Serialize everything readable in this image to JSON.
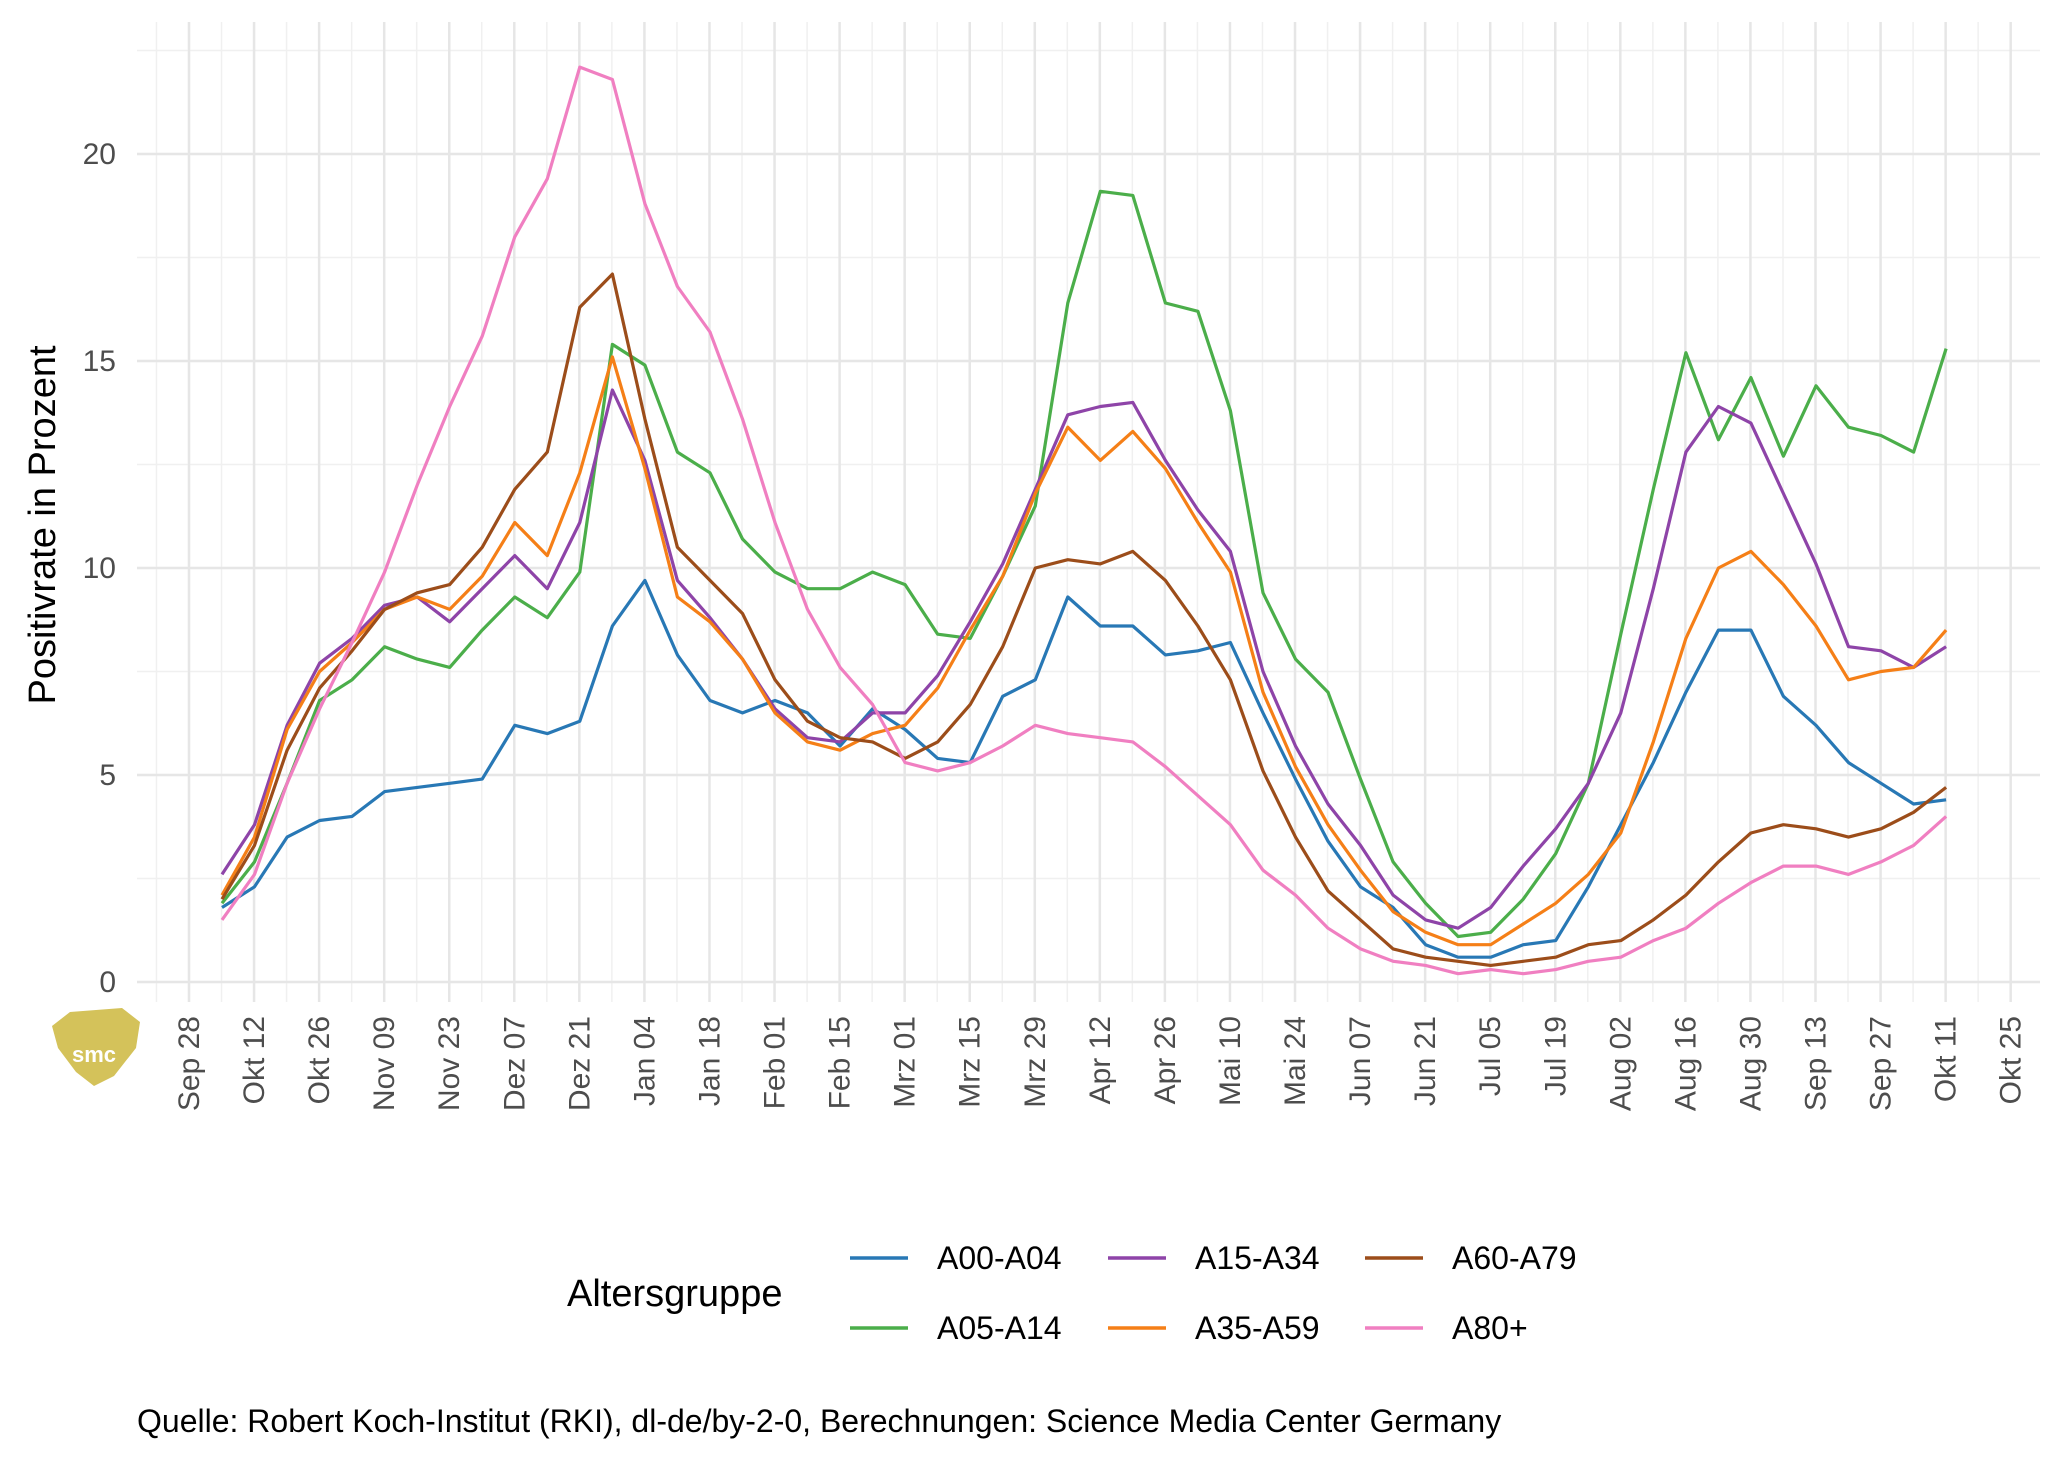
{
  "chart_data": {
    "type": "line",
    "title": "",
    "xlabel": "",
    "ylabel": "Positivrate in Prozent",
    "ylim": [
      -0.7,
      23.5
    ],
    "y_ticks": [
      0,
      5,
      10,
      15,
      20
    ],
    "x_tick_labels": [
      "Sep 28",
      "Okt 12",
      "Okt 26",
      "Nov 09",
      "Nov 23",
      "Dez 07",
      "Dez 21",
      "Jan 04",
      "Jan 18",
      "Feb 01",
      "Feb 15",
      "Mrz 01",
      "Mrz 15",
      "Mrz 29",
      "Apr 12",
      "Apr 26",
      "Mai 10",
      "Mai 24",
      "Jun 07",
      "Jun 21",
      "Jul 05",
      "Jul 19",
      "Aug 02",
      "Aug 16",
      "Aug 30",
      "Sep 13",
      "Sep 27",
      "Okt 11",
      "Okt 25"
    ],
    "grid": true,
    "legend_title": "Altersgruppe",
    "legend_position": "bottom",
    "caption": "Quelle: Robert Koch-Institut (RKI), dl-de/by-2-0, Berechnungen: Science Media Center Germany",
    "series": [
      {
        "name": "A00-A04",
        "color": "#2878b5",
        "values": [
          1.8,
          2.3,
          3.5,
          3.9,
          4.0,
          4.6,
          4.7,
          4.8,
          4.9,
          6.2,
          6.0,
          6.3,
          8.6,
          9.7,
          7.9,
          6.8,
          6.5,
          6.8,
          6.5,
          5.7,
          6.6,
          6.1,
          5.4,
          5.3,
          6.9,
          7.3,
          9.3,
          8.6,
          8.6,
          7.9,
          8.0,
          8.2,
          6.5,
          4.9,
          3.4,
          2.3,
          1.8,
          0.9,
          0.6,
          0.6,
          0.9,
          1.0,
          2.3,
          3.8,
          5.3,
          7.0,
          8.5,
          8.5,
          6.9,
          6.2,
          5.3,
          4.8,
          4.3,
          4.4
        ]
      },
      {
        "name": "A05-A14",
        "color": "#4bae4a",
        "values": [
          1.9,
          2.9,
          4.8,
          6.8,
          7.3,
          8.1,
          7.8,
          7.6,
          8.5,
          9.3,
          8.8,
          9.9,
          15.4,
          14.9,
          12.8,
          12.3,
          10.7,
          9.9,
          9.5,
          9.5,
          9.9,
          9.6,
          8.4,
          8.3,
          9.8,
          11.5,
          16.4,
          19.1,
          19.0,
          16.4,
          16.2,
          13.8,
          9.4,
          7.8,
          7.0,
          4.9,
          2.9,
          1.9,
          1.1,
          1.2,
          2.0,
          3.1,
          4.8,
          8.4,
          11.9,
          15.2,
          13.1,
          14.6,
          12.7,
          14.4,
          13.4,
          13.2,
          12.8,
          15.3
        ]
      },
      {
        "name": "A15-A34",
        "color": "#8e44a8",
        "values": [
          2.6,
          3.8,
          6.2,
          7.7,
          8.3,
          9.1,
          9.3,
          8.7,
          9.5,
          10.3,
          9.5,
          11.1,
          14.3,
          12.6,
          9.7,
          8.8,
          7.8,
          6.6,
          5.9,
          5.8,
          6.5,
          6.5,
          7.4,
          8.7,
          10.1,
          11.9,
          13.7,
          13.9,
          14.0,
          12.6,
          11.4,
          10.4,
          7.5,
          5.7,
          4.3,
          3.3,
          2.1,
          1.5,
          1.3,
          1.8,
          2.8,
          3.7,
          4.8,
          6.5,
          9.5,
          12.8,
          13.9,
          13.5,
          11.8,
          10.1,
          8.1,
          8.0,
          7.6,
          8.1
        ]
      },
      {
        "name": "A35-A59",
        "color": "#f57f17",
        "values": [
          2.1,
          3.5,
          6.1,
          7.5,
          8.2,
          9.0,
          9.3,
          9.0,
          9.8,
          11.1,
          10.3,
          12.3,
          15.1,
          12.4,
          9.3,
          8.7,
          7.8,
          6.5,
          5.8,
          5.6,
          6.0,
          6.2,
          7.1,
          8.5,
          9.8,
          11.8,
          13.4,
          12.6,
          13.3,
          12.4,
          11.1,
          9.9,
          7.0,
          5.2,
          3.8,
          2.7,
          1.7,
          1.2,
          0.9,
          0.9,
          1.4,
          1.9,
          2.6,
          3.6,
          5.8,
          8.3,
          10.0,
          10.4,
          9.6,
          8.6,
          7.3,
          7.5,
          7.6,
          8.5
        ]
      },
      {
        "name": "A60-A79",
        "color": "#9c4d1a",
        "values": [
          2.0,
          3.3,
          5.6,
          7.1,
          8.0,
          9.0,
          9.4,
          9.6,
          10.5,
          11.9,
          12.8,
          16.3,
          17.1,
          13.6,
          10.5,
          9.7,
          8.9,
          7.3,
          6.3,
          5.9,
          5.8,
          5.4,
          5.8,
          6.7,
          8.1,
          10.0,
          10.2,
          10.1,
          10.4,
          9.7,
          8.6,
          7.3,
          5.1,
          3.5,
          2.2,
          1.5,
          0.8,
          0.6,
          0.5,
          0.4,
          0.5,
          0.6,
          0.9,
          1.0,
          1.5,
          2.1,
          2.9,
          3.6,
          3.8,
          3.7,
          3.5,
          3.7,
          4.1,
          4.7
        ]
      },
      {
        "name": "A80+",
        "color": "#f07fc1",
        "values": [
          1.5,
          2.6,
          4.8,
          6.6,
          8.2,
          9.9,
          12.0,
          13.9,
          15.6,
          18.0,
          19.4,
          22.1,
          21.8,
          18.8,
          16.8,
          15.7,
          13.6,
          11.1,
          9.0,
          7.6,
          6.7,
          5.3,
          5.1,
          5.3,
          5.7,
          6.2,
          6.0,
          5.9,
          5.8,
          5.2,
          4.5,
          3.8,
          2.7,
          2.1,
          1.3,
          0.8,
          0.5,
          0.4,
          0.2,
          0.3,
          0.2,
          0.3,
          0.5,
          0.6,
          1.0,
          1.3,
          1.9,
          2.4,
          2.8,
          2.8,
          2.6,
          2.9,
          3.3,
          4.0
        ]
      }
    ]
  },
  "logo": {
    "text": "smc"
  }
}
